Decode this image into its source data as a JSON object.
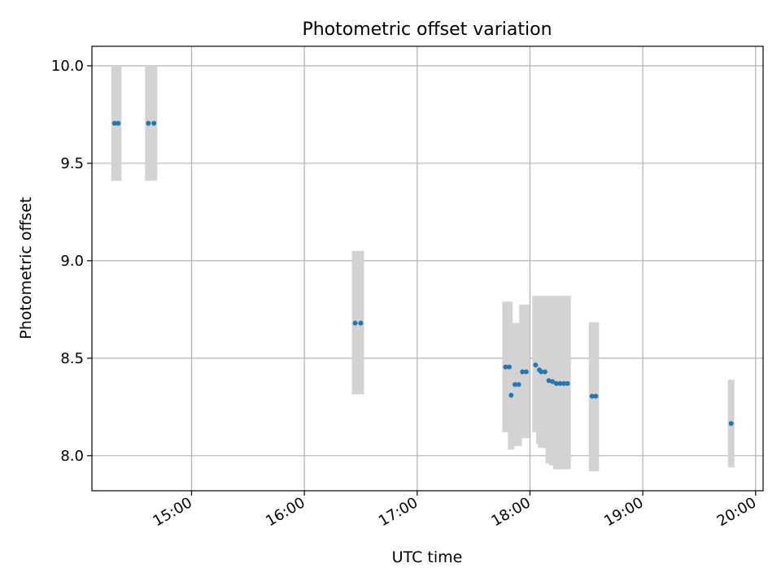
{
  "chart_data": {
    "type": "scatter",
    "title": "Photometric offset variation",
    "xlabel": "UTC time",
    "ylabel": "Photometric offset",
    "xlim": [
      "14:07",
      "20:04"
    ],
    "ylim": [
      7.82,
      10.1
    ],
    "x_ticks": [
      "15:00",
      "16:00",
      "17:00",
      "18:00",
      "19:00",
      "20:00"
    ],
    "y_ticks": [
      8.0,
      8.5,
      9.0,
      9.5,
      10.0
    ],
    "y_tick_labels": [
      "8.0",
      "8.5",
      "9.0",
      "9.5",
      "10.0"
    ],
    "grid": true,
    "error_bar_style": "light gray vertical bands",
    "point_color": "#1f77b4",
    "error_color": "#d3d3d3",
    "series": [
      {
        "points": [
          {
            "x": "14:19",
            "y": 9.705,
            "low": 9.41,
            "high": 10.0
          },
          {
            "x": "14:21",
            "y": 9.705,
            "low": 9.41,
            "high": 10.0
          },
          {
            "x": "14:37",
            "y": 9.705,
            "low": 9.41,
            "high": 10.0
          },
          {
            "x": "14:40",
            "y": 9.705,
            "low": 9.41,
            "high": 10.0
          },
          {
            "x": "16:27",
            "y": 8.68,
            "low": 8.315,
            "high": 9.05
          },
          {
            "x": "16:30",
            "y": 8.68,
            "low": 8.315,
            "high": 9.05
          },
          {
            "x": "17:47",
            "y": 8.455,
            "low": 8.12,
            "high": 8.79
          },
          {
            "x": "17:49",
            "y": 8.455,
            "low": 8.12,
            "high": 8.79
          },
          {
            "x": "17:50",
            "y": 8.31,
            "low": 8.03,
            "high": 8.6
          },
          {
            "x": "17:52",
            "y": 8.365,
            "low": 8.05,
            "high": 8.68
          },
          {
            "x": "17:54",
            "y": 8.365,
            "low": 8.05,
            "high": 8.68
          },
          {
            "x": "17:56",
            "y": 8.43,
            "low": 8.09,
            "high": 8.775
          },
          {
            "x": "17:58",
            "y": 8.43,
            "low": 8.09,
            "high": 8.775
          },
          {
            "x": "18:03",
            "y": 8.465,
            "low": 8.12,
            "high": 8.82
          },
          {
            "x": "18:05",
            "y": 8.44,
            "low": 8.06,
            "high": 8.82
          },
          {
            "x": "18:06",
            "y": 8.43,
            "low": 8.04,
            "high": 8.82
          },
          {
            "x": "18:08",
            "y": 8.43,
            "low": 8.04,
            "high": 8.82
          },
          {
            "x": "18:10",
            "y": 8.385,
            "low": 7.96,
            "high": 8.82
          },
          {
            "x": "18:12",
            "y": 8.38,
            "low": 7.95,
            "high": 8.82
          },
          {
            "x": "18:14",
            "y": 8.37,
            "low": 7.93,
            "high": 8.82
          },
          {
            "x": "18:16",
            "y": 8.37,
            "low": 7.93,
            "high": 8.82
          },
          {
            "x": "18:18",
            "y": 8.37,
            "low": 7.93,
            "high": 8.82
          },
          {
            "x": "18:20",
            "y": 8.37,
            "low": 7.93,
            "high": 8.82
          },
          {
            "x": "18:33",
            "y": 8.305,
            "low": 7.92,
            "high": 8.685
          },
          {
            "x": "18:35",
            "y": 8.305,
            "low": 7.92,
            "high": 8.685
          },
          {
            "x": "19:47",
            "y": 8.165,
            "low": 7.94,
            "high": 8.39
          }
        ]
      }
    ]
  }
}
